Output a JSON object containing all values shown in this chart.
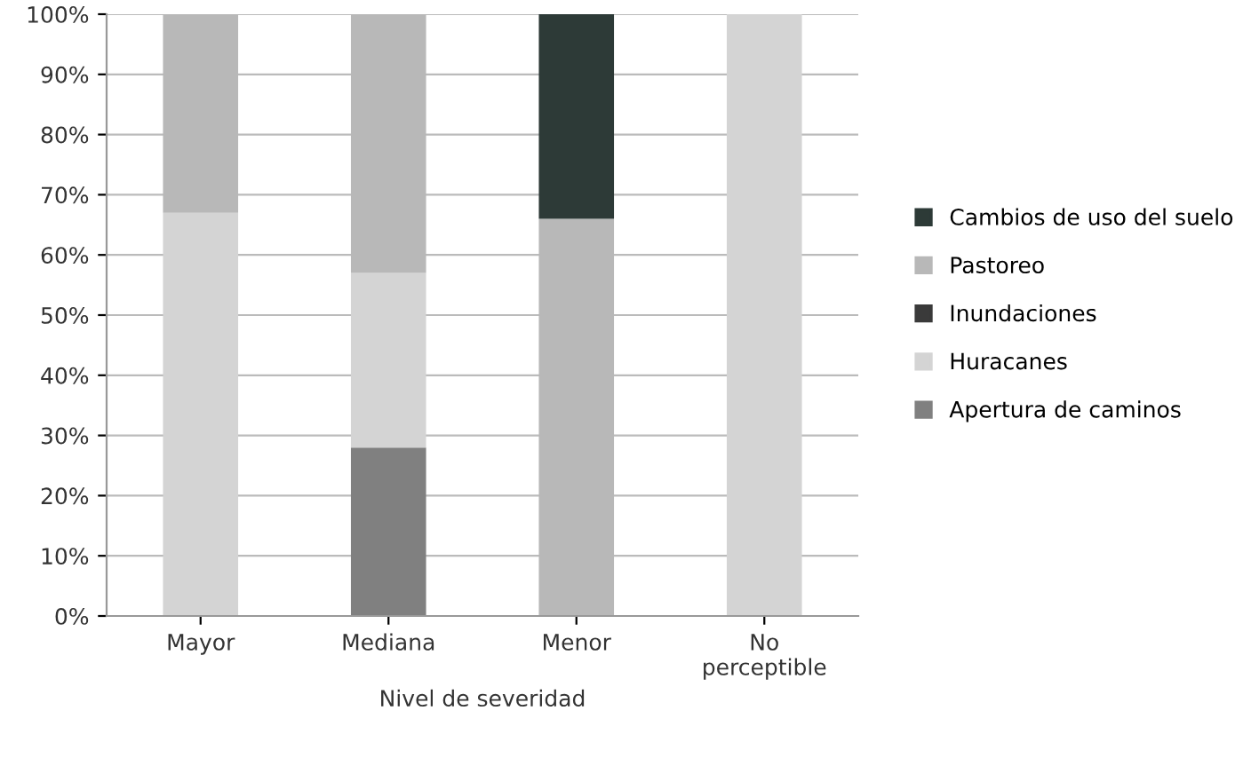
{
  "chart_data": {
    "type": "bar",
    "stacked": true,
    "xlabel": "Nivel de severidad",
    "categories": [
      "Mayor",
      "Mediana",
      "Menor",
      "No\nperceptible"
    ],
    "series": [
      {
        "name": "Apertura de caminos",
        "color": "#808080",
        "values": [
          0,
          28,
          0,
          0
        ]
      },
      {
        "name": "Huracanes",
        "color": "#d4d4d4",
        "values": [
          67,
          29,
          0,
          100
        ]
      },
      {
        "name": "Inundaciones",
        "color": "#3a3a3a",
        "values": [
          0,
          0,
          0,
          0
        ]
      },
      {
        "name": "Pastoreo",
        "color": "#b8b8b8",
        "values": [
          33,
          43,
          66,
          0
        ]
      },
      {
        "name": "Cambios de uso del suelo",
        "color": "#2d3a37",
        "values": [
          0,
          0,
          34,
          0
        ]
      }
    ],
    "ylim": [
      0,
      100
    ],
    "yticks": [
      {
        "value": 0,
        "label": "0%"
      },
      {
        "value": 10,
        "label": "10%"
      },
      {
        "value": 20,
        "label": "20%"
      },
      {
        "value": 30,
        "label": "30%"
      },
      {
        "value": 40,
        "label": "40%"
      },
      {
        "value": 50,
        "label": "50%"
      },
      {
        "value": 60,
        "label": "60%"
      },
      {
        "value": 70,
        "label": "70%"
      },
      {
        "value": 80,
        "label": "80%"
      },
      {
        "value": 90,
        "label": "90%"
      },
      {
        "value": 100,
        "label": "100%"
      }
    ],
    "grid": "y",
    "legend": "right"
  }
}
